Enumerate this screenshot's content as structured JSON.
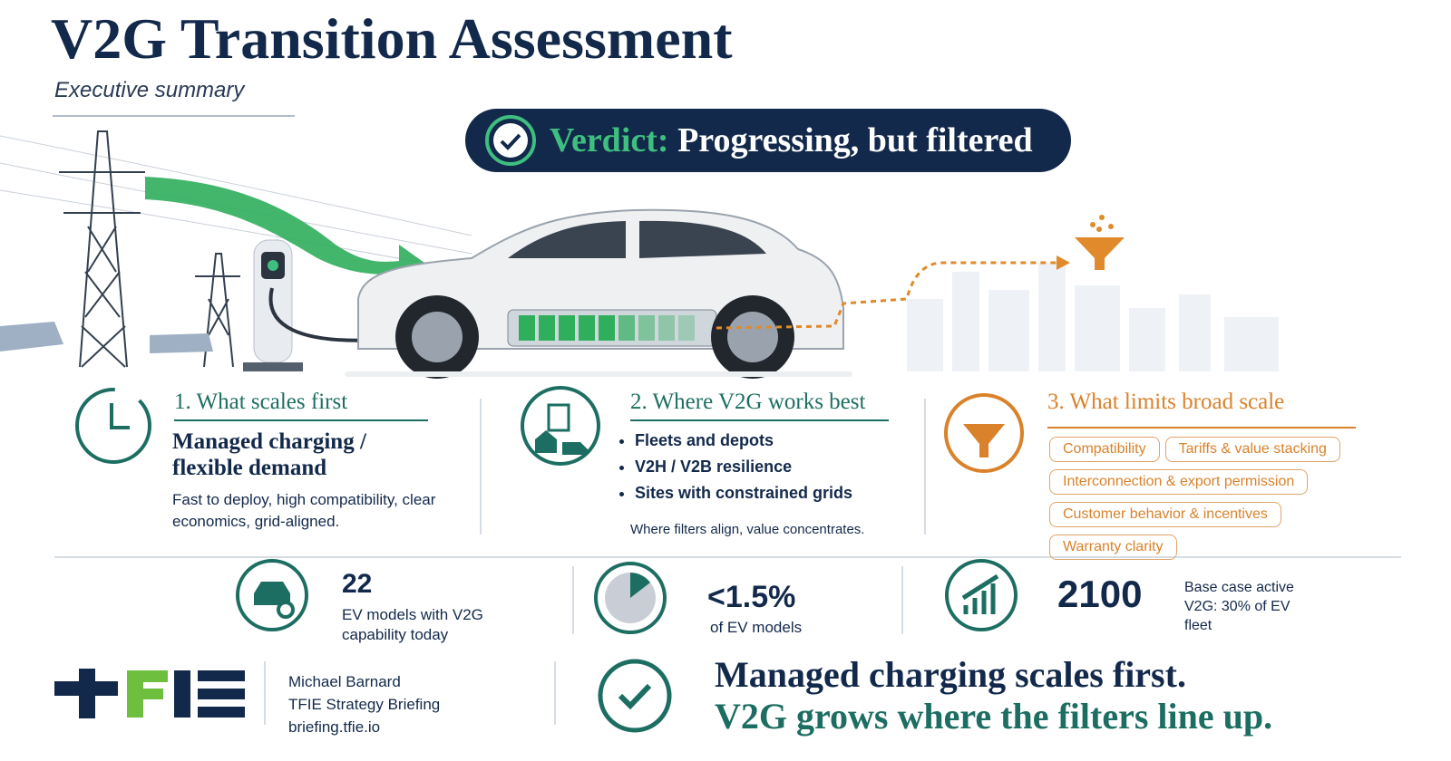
{
  "header": {
    "title": "V2G Transition Assessment",
    "subtitle": "Executive summary"
  },
  "verdict": {
    "label": "Verdict:",
    "text": "Progressing, but filtered"
  },
  "columns": [
    {
      "heading": "1. What scales first",
      "subheading": "Managed charging / flexible demand",
      "body": "Fast to deploy, high compatibility, clear economics, grid-aligned."
    },
    {
      "heading": "2. Where V2G works best",
      "bullets": [
        "Fleets and depots",
        "V2H / V2B resilience",
        "Sites with constrained grids"
      ],
      "note": "Where filters align, value concentrates."
    },
    {
      "heading": "3. What limits broad scale",
      "tags": [
        "Compatibility",
        "Tariffs & value stacking",
        "Interconnection & export permission",
        "Customer behavior & incentives",
        "Warranty clarity"
      ]
    }
  ],
  "stats": [
    {
      "value": 22,
      "caption": "EV models with V2G capability today"
    },
    {
      "value": "<1.5%",
      "caption": "of EV models"
    },
    {
      "value": 2100,
      "caption": "Base case active V2G: 30% of EV fleet"
    }
  ],
  "footer": {
    "author": [
      "Michael Barnard",
      "TFIE Strategy Briefing",
      "briefing.tfie.io"
    ],
    "conclusion": [
      "Managed charging scales first.",
      "V2G grows where the filters line up."
    ]
  }
}
